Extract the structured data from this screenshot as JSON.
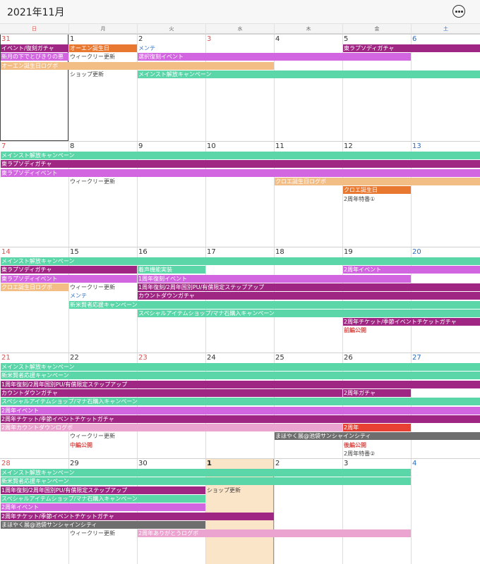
{
  "header": {
    "title": "2021年11月",
    "menu_icon": "more-horizontal-circle-icon"
  },
  "weekdays": [
    "日",
    "月",
    "火",
    "水",
    "木",
    "金",
    "土"
  ],
  "colors": {
    "sunday": "#d9534f",
    "saturday": "#2c6fc2",
    "orange": "#e87730",
    "purple": "#a02683",
    "violet": "#d265e0",
    "peach": "#f3bd86",
    "teal": "#5ad6a8",
    "pink": "#eba3cf",
    "red": "#e84033",
    "gray": "#6e6e6e",
    "today_bg": "#fbe5c8",
    "today_border": "#c7952e"
  },
  "weeks": [
    {
      "days": [
        {
          "num": "31",
          "kind": "sun"
        },
        {
          "num": "1",
          "kind": ""
        },
        {
          "num": "2",
          "kind": ""
        },
        {
          "num": "3",
          "kind": "holiday"
        },
        {
          "num": "4",
          "kind": ""
        },
        {
          "num": "5",
          "kind": ""
        },
        {
          "num": "6",
          "kind": "sat"
        }
      ],
      "rows": [
        [
          {
            "start": 0,
            "span": 1,
            "text": "イベント/復刻ガチャ",
            "color": "purple"
          },
          {
            "start": 1,
            "span": 1,
            "text": "オーエン誕生日",
            "color": "orange"
          },
          {
            "start": 2,
            "span": 1,
            "text": "メンテ",
            "color": "",
            "fg": "#2c6fc2"
          },
          {
            "start": 5,
            "span": 2,
            "text": "東ラプソディガチャ",
            "color": "purple"
          }
        ],
        [
          {
            "start": 0,
            "span": 1,
            "text": "新月の下でとびきりの悪",
            "color": "violet"
          },
          {
            "start": 1,
            "span": 1,
            "text": "ウィークリー更新",
            "color": "",
            "fg": "#444"
          },
          {
            "start": 2,
            "span": 4,
            "text": "選択復刻イベント",
            "color": "violet"
          }
        ],
        [
          {
            "start": 0,
            "span": 4,
            "text": "オーエン誕生日ログボ",
            "color": "peach"
          }
        ],
        [
          {
            "start": 1,
            "span": 1,
            "text": "ショップ更新",
            "color": "",
            "fg": "#444"
          },
          {
            "start": 2,
            "span": 5,
            "text": "メインスト解放キャンペーン",
            "color": "teal"
          }
        ]
      ]
    },
    {
      "days": [
        {
          "num": "7",
          "kind": "sun"
        },
        {
          "num": "8",
          "kind": ""
        },
        {
          "num": "9",
          "kind": ""
        },
        {
          "num": "10",
          "kind": ""
        },
        {
          "num": "11",
          "kind": ""
        },
        {
          "num": "12",
          "kind": ""
        },
        {
          "num": "13",
          "kind": "sat"
        }
      ],
      "rows": [
        [
          {
            "start": 0,
            "span": 7,
            "text": "メインスト解放キャンペーン",
            "color": "teal"
          }
        ],
        [
          {
            "start": 0,
            "span": 7,
            "text": "東ラプソディガチャ",
            "color": "purple"
          }
        ],
        [
          {
            "start": 0,
            "span": 7,
            "text": "東ラプソディイベント",
            "color": "violet"
          }
        ],
        [
          {
            "start": 1,
            "span": 1,
            "text": "ウィークリー更新",
            "color": "",
            "fg": "#444"
          },
          {
            "start": 4,
            "span": 3,
            "text": "クロエ誕生日ログボ",
            "color": "peach"
          }
        ],
        [
          {
            "start": 5,
            "span": 1,
            "text": "クロエ誕生日",
            "color": "orange"
          }
        ],
        [
          {
            "start": 5,
            "span": 1,
            "text": "2周年特番①",
            "color": "",
            "fg": "#444"
          }
        ]
      ]
    },
    {
      "days": [
        {
          "num": "14",
          "kind": "sun"
        },
        {
          "num": "15",
          "kind": ""
        },
        {
          "num": "16",
          "kind": ""
        },
        {
          "num": "17",
          "kind": ""
        },
        {
          "num": "18",
          "kind": ""
        },
        {
          "num": "19",
          "kind": ""
        },
        {
          "num": "20",
          "kind": "sat"
        }
      ],
      "rows": [
        [
          {
            "start": 0,
            "span": 7,
            "text": "メインスト解放キャンペーン",
            "color": "teal"
          }
        ],
        [
          {
            "start": 0,
            "span": 2,
            "text": "東ラプソディガチャ",
            "color": "purple"
          },
          {
            "start": 2,
            "span": 1,
            "text": "着声機能実装",
            "color": "teal"
          },
          {
            "start": 5,
            "span": 2,
            "text": "2周年イベント",
            "color": "violet"
          }
        ],
        [
          {
            "start": 0,
            "span": 2,
            "text": "東ラプソディイベント",
            "color": "violet"
          },
          {
            "start": 2,
            "span": 4,
            "text": "1周年復刻イベント",
            "color": "violet"
          }
        ],
        [
          {
            "start": 0,
            "span": 1,
            "text": "クロエ誕生日ログボ",
            "color": "peach"
          },
          {
            "start": 1,
            "span": 1,
            "text": "ウィークリー更新",
            "color": "",
            "fg": "#444"
          },
          {
            "start": 2,
            "span": 5,
            "text": "1周年復刻/2周年国別PU/有償限定ステップアップ",
            "color": "purple"
          }
        ],
        [
          {
            "start": 1,
            "span": 1,
            "text": "メンテ",
            "color": "",
            "fg": "#2c6fc2"
          },
          {
            "start": 2,
            "span": 5,
            "text": "カウントダウンガチャ",
            "color": "purple"
          }
        ],
        [
          {
            "start": 1,
            "span": 6,
            "text": "新米賢者応援キャンペーン",
            "color": "teal"
          }
        ],
        [
          {
            "start": 2,
            "span": 5,
            "text": "スペシャルアイテムショップ/マナ石購入キャンペーン",
            "color": "teal"
          }
        ],
        [
          {
            "start": 5,
            "span": 2,
            "text": "2周年チケット/季節イベントチケットガチャ",
            "color": "purple"
          }
        ],
        [
          {
            "start": 5,
            "span": 1,
            "text": "前編公開",
            "color": "",
            "fg": "#d9534f",
            "bold": true
          }
        ]
      ]
    },
    {
      "days": [
        {
          "num": "21",
          "kind": "sun"
        },
        {
          "num": "22",
          "kind": ""
        },
        {
          "num": "23",
          "kind": "holiday"
        },
        {
          "num": "24",
          "kind": ""
        },
        {
          "num": "25",
          "kind": ""
        },
        {
          "num": "26",
          "kind": ""
        },
        {
          "num": "27",
          "kind": "sat"
        }
      ],
      "rows": [
        [
          {
            "start": 0,
            "span": 7,
            "text": "メインスト解放キャンペーン",
            "color": "teal"
          }
        ],
        [
          {
            "start": 0,
            "span": 7,
            "text": "新米賢者応援キャンペーン",
            "color": "teal"
          }
        ],
        [
          {
            "start": 0,
            "span": 7,
            "text": "1周年復刻/2周年国別PU/有償限定ステップアップ",
            "color": "purple"
          }
        ],
        [
          {
            "start": 0,
            "span": 5,
            "text": "カウントダウンガチャ",
            "color": "purple"
          },
          {
            "start": 5,
            "span": 1,
            "text": "2周年ガチャ",
            "color": "purple"
          }
        ],
        [
          {
            "start": 0,
            "span": 7,
            "text": "スペシャルアイテムショップ/マナ石購入キャンペーン",
            "color": "teal"
          }
        ],
        [
          {
            "start": 0,
            "span": 7,
            "text": "2周年イベント",
            "color": "violet"
          }
        ],
        [
          {
            "start": 0,
            "span": 7,
            "text": "2周年チケット/季節イベントチケットガチャ",
            "color": "purple"
          }
        ],
        [
          {
            "start": 0,
            "span": 5,
            "text": "2周年カウントダウンログボ",
            "color": "pink"
          },
          {
            "start": 5,
            "span": 1,
            "text": "2周年",
            "color": "red"
          }
        ],
        [
          {
            "start": 1,
            "span": 1,
            "text": "ウィークリー更新",
            "color": "",
            "fg": "#444"
          },
          {
            "start": 4,
            "span": 3,
            "text": "まほやく展@池袋サンシャインシティ",
            "color": "gray"
          }
        ],
        [
          {
            "start": 1,
            "span": 1,
            "text": "中編公開",
            "color": "",
            "fg": "#d9534f",
            "bold": true
          },
          {
            "start": 5,
            "span": 1,
            "text": "後編公開",
            "color": "",
            "fg": "#d9534f",
            "bold": true
          }
        ],
        [
          {
            "start": 5,
            "span": 1,
            "text": "2周年特番②",
            "color": "",
            "fg": "#444"
          }
        ]
      ]
    },
    {
      "days": [
        {
          "num": "28",
          "kind": "sun"
        },
        {
          "num": "29",
          "kind": ""
        },
        {
          "num": "30",
          "kind": ""
        },
        {
          "num": "1",
          "kind": "today"
        },
        {
          "num": "2",
          "kind": ""
        },
        {
          "num": "3",
          "kind": ""
        },
        {
          "num": "4",
          "kind": "sat"
        }
      ],
      "rows": [
        [
          {
            "start": 0,
            "span": 6,
            "text": "メインスト解放キャンペーン",
            "color": "teal"
          }
        ],
        [
          {
            "start": 0,
            "span": 6,
            "text": "新米賢者応援キャンペーン",
            "color": "teal"
          }
        ],
        [
          {
            "start": 0,
            "span": 3,
            "text": "1周年復刻/2周年国別PU/有償限定ステップアップ",
            "color": "purple"
          },
          {
            "start": 3,
            "span": 1,
            "text": "ショップ更新",
            "color": "",
            "fg": "#444"
          }
        ],
        [
          {
            "start": 0,
            "span": 3,
            "text": "スペシャルアイテムショップ/マナ石購入キャンペーン",
            "color": "teal"
          }
        ],
        [
          {
            "start": 0,
            "span": 3,
            "text": "2周年イベント",
            "color": "violet"
          }
        ],
        [
          {
            "start": 0,
            "span": 4,
            "text": "2周年チケット/季節イベントチケットガチャ",
            "color": "purple"
          }
        ],
        [
          {
            "start": 0,
            "span": 3,
            "text": "まほやく展@池袋サンシャインシティ",
            "color": "gray"
          }
        ],
        [
          {
            "start": 1,
            "span": 1,
            "text": "ウィークリー更新",
            "color": "",
            "fg": "#444"
          },
          {
            "start": 2,
            "span": 4,
            "text": "2周年ありがとうログボ",
            "color": "pink"
          }
        ]
      ]
    }
  ]
}
